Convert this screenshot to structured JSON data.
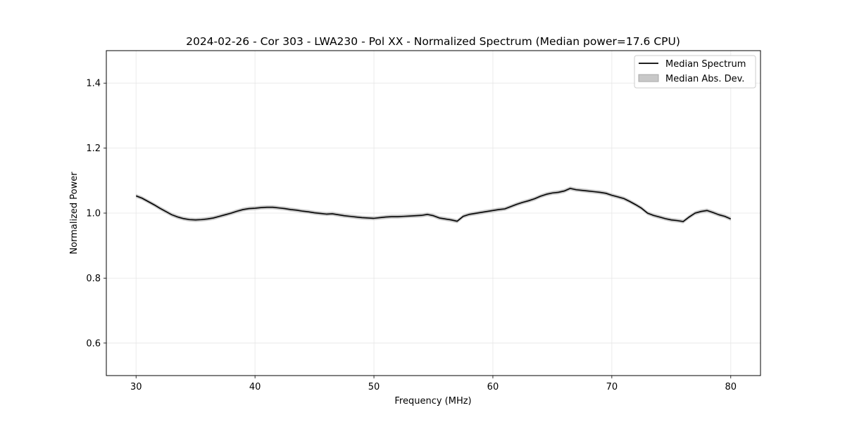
{
  "chart_data": {
    "type": "line",
    "title": "2024-02-26 - Cor 303 - LWA230 - Pol XX - Normalized Spectrum (Median power=17.6 CPU)",
    "xlabel": "Frequency (MHz)",
    "ylabel": "Normalized Power",
    "xlim": [
      27.5,
      82.5
    ],
    "ylim": [
      0.5,
      1.5
    ],
    "xticks": [
      30,
      40,
      50,
      60,
      70,
      80
    ],
    "xtick_labels": [
      "30",
      "40",
      "50",
      "60",
      "70",
      "80"
    ],
    "yticks": [
      0.6,
      0.8,
      1.0,
      1.2,
      1.4
    ],
    "ytick_labels": [
      "0.6",
      "0.8",
      "1.0",
      "1.2",
      "1.4"
    ],
    "grid": true,
    "legend": {
      "position": "top-right",
      "entries": [
        {
          "label": "Median Spectrum",
          "kind": "line",
          "color": "#000000"
        },
        {
          "label": "Median Abs. Dev.",
          "kind": "band",
          "color": "#c8c8c8"
        }
      ]
    },
    "series": [
      {
        "name": "Median Spectrum",
        "color": "#000000",
        "band_color": "#c8c8c8",
        "mad": 0.006,
        "x": [
          30,
          30.5,
          31,
          31.5,
          32,
          32.5,
          33,
          33.5,
          34,
          34.5,
          35,
          35.5,
          36,
          36.5,
          37,
          37.5,
          38,
          38.5,
          39,
          39.5,
          40,
          40.5,
          41,
          41.5,
          42,
          42.5,
          43,
          43.5,
          44,
          44.5,
          45,
          45.5,
          46,
          46.5,
          47,
          47.5,
          48,
          48.5,
          49,
          49.5,
          50,
          50.5,
          51,
          51.5,
          52,
          52.5,
          53,
          53.5,
          54,
          54.5,
          55,
          55.5,
          56,
          56.5,
          57,
          57.5,
          58,
          58.5,
          59,
          59.5,
          60,
          60.5,
          61,
          61.5,
          62,
          62.5,
          63,
          63.5,
          64,
          64.5,
          65,
          65.5,
          66,
          66.5,
          67,
          67.5,
          68,
          68.5,
          69,
          69.5,
          70,
          70.5,
          71,
          71.5,
          72,
          72.5,
          73,
          73.5,
          74,
          74.5,
          75,
          75.5,
          76,
          76.5,
          77,
          77.5,
          78,
          78.5,
          79,
          79.5,
          80
        ],
        "values": [
          1.053,
          1.046,
          1.036,
          1.026,
          1.015,
          1.005,
          0.995,
          0.988,
          0.983,
          0.98,
          0.979,
          0.98,
          0.982,
          0.985,
          0.99,
          0.995,
          1.0,
          1.006,
          1.011,
          1.014,
          1.015,
          1.017,
          1.018,
          1.018,
          1.016,
          1.014,
          1.011,
          1.009,
          1.006,
          1.004,
          1.001,
          0.999,
          0.997,
          0.998,
          0.995,
          0.992,
          0.99,
          0.988,
          0.986,
          0.985,
          0.984,
          0.986,
          0.988,
          0.989,
          0.989,
          0.99,
          0.991,
          0.992,
          0.993,
          0.996,
          0.992,
          0.985,
          0.982,
          0.979,
          0.975,
          0.99,
          0.996,
          0.999,
          1.002,
          1.005,
          1.008,
          1.011,
          1.013,
          1.02,
          1.027,
          1.033,
          1.038,
          1.044,
          1.052,
          1.058,
          1.062,
          1.064,
          1.068,
          1.076,
          1.072,
          1.07,
          1.068,
          1.066,
          1.064,
          1.061,
          1.055,
          1.05,
          1.045,
          1.036,
          1.026,
          1.015,
          1.0,
          0.993,
          0.988,
          0.983,
          0.979,
          0.977,
          0.974,
          0.988,
          1.0,
          1.005,
          1.008,
          1.002,
          0.995,
          0.99,
          0.982
        ]
      }
    ]
  }
}
